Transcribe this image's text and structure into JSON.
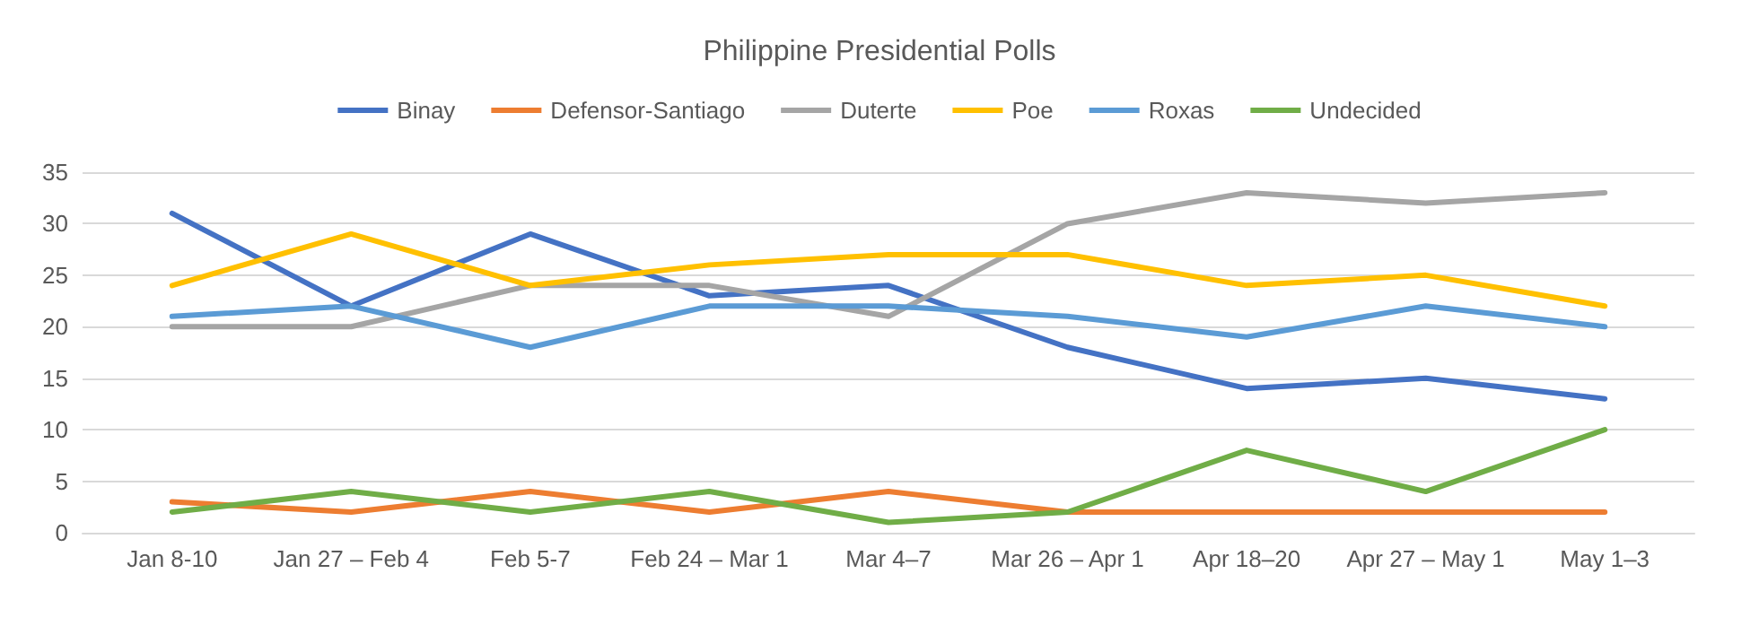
{
  "chart_data": {
    "type": "line",
    "title": "Philippine Presidential Polls",
    "categories": [
      "Jan 8-10",
      "Jan 27 – Feb 4",
      "Feb 5-7",
      "Feb 24 – Mar 1",
      "Mar 4–7",
      "Mar 26 – Apr 1",
      "Apr 18–20",
      "Apr 27 – May 1",
      "May 1–3"
    ],
    "series": [
      {
        "name": "Binay",
        "color": "#4472c4",
        "values": [
          31,
          22,
          29,
          23,
          24,
          18,
          14,
          15,
          13
        ]
      },
      {
        "name": "Defensor-Santiago",
        "color": "#ed7d31",
        "values": [
          3,
          2,
          4,
          2,
          4,
          2,
          2,
          2,
          2
        ]
      },
      {
        "name": "Duterte",
        "color": "#a5a5a5",
        "values": [
          20,
          20,
          24,
          24,
          21,
          30,
          33,
          32,
          33
        ]
      },
      {
        "name": "Poe",
        "color": "#ffc000",
        "values": [
          24,
          29,
          24,
          26,
          27,
          27,
          24,
          25,
          22
        ]
      },
      {
        "name": "Roxas",
        "color": "#5b9bd5",
        "values": [
          21,
          22,
          18,
          22,
          22,
          21,
          19,
          22,
          20
        ]
      },
      {
        "name": "Undecided",
        "color": "#70ad47",
        "values": [
          2,
          4,
          2,
          4,
          1,
          2,
          8,
          4,
          10
        ]
      }
    ],
    "ylim": [
      0,
      35
    ],
    "yticks": [
      0,
      5,
      10,
      15,
      20,
      25,
      30,
      35
    ],
    "grid": "y",
    "legend": "top",
    "marker": "none",
    "line_style": "solid"
  }
}
